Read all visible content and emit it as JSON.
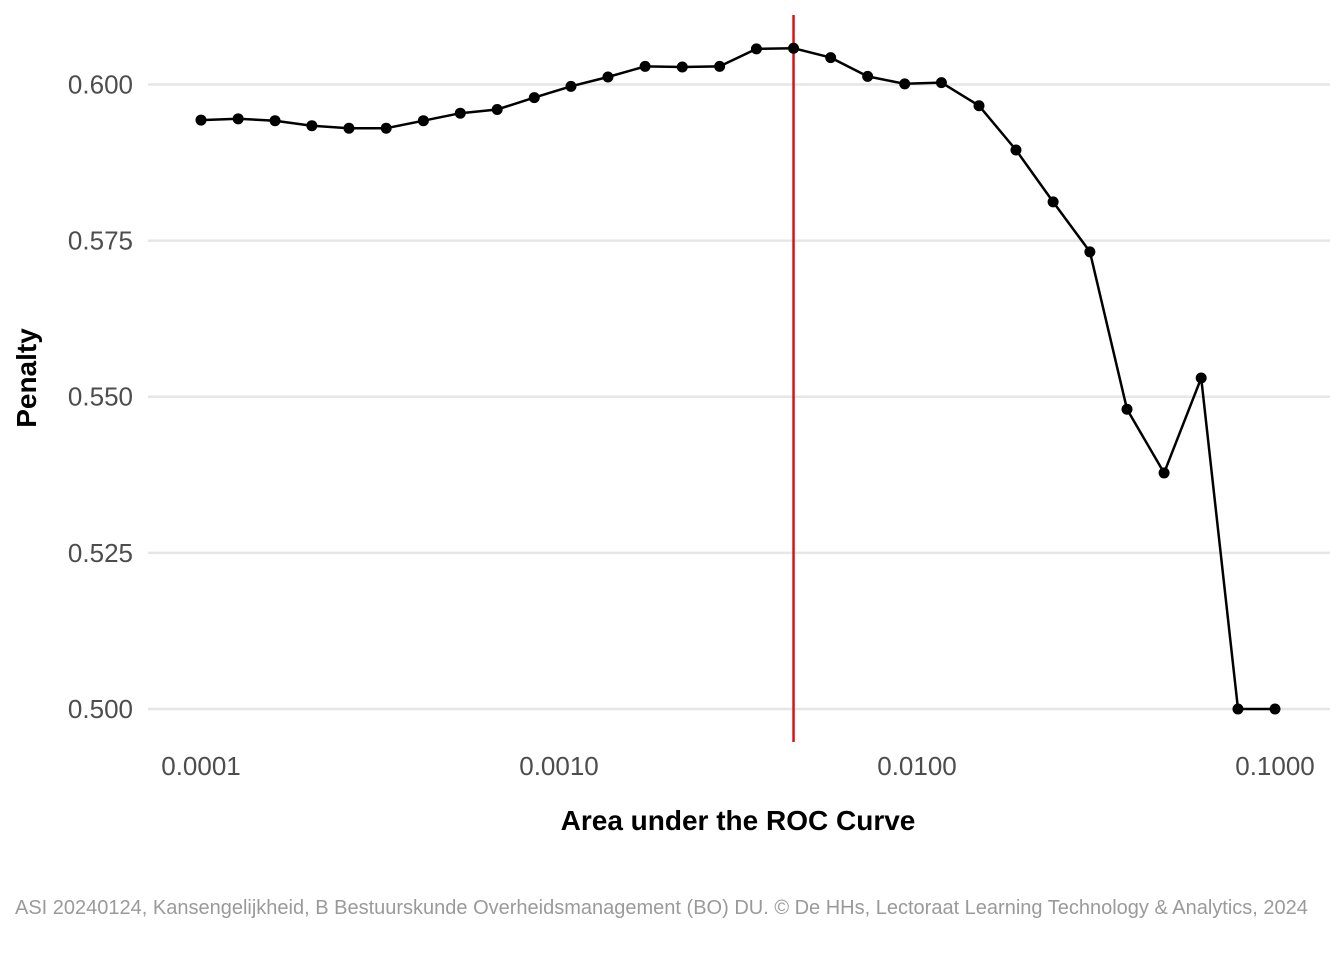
{
  "chart_data": {
    "type": "line",
    "title": "",
    "xlabel": "Area under the ROC Curve",
    "ylabel": "Penalty",
    "x_scale": "log",
    "xlim": [
      0.0001,
      0.1
    ],
    "ylim": [
      0.5,
      0.606
    ],
    "x_ticks": [
      0.0001,
      0.001,
      0.01,
      0.1
    ],
    "x_tick_labels": [
      "0.0001",
      "0.0010",
      "0.0100",
      "0.1000"
    ],
    "y_ticks": [
      0.5,
      0.525,
      0.55,
      0.575,
      0.6
    ],
    "y_tick_labels": [
      "0.500",
      "0.525",
      "0.550",
      "0.575",
      "0.600"
    ],
    "grid": true,
    "series": [
      {
        "color": "#000000",
        "marker": "circle",
        "x": [
          0.0001,
          0.000127,
          0.000161,
          0.000204,
          0.000259,
          0.000329,
          0.000418,
          0.00053,
          0.000672,
          0.000853,
          0.00108,
          0.00137,
          0.00174,
          0.00221,
          0.00281,
          0.00356,
          0.00452,
          0.00574,
          0.00728,
          0.00924,
          0.0117,
          0.0149,
          0.0189,
          0.024,
          0.0304,
          0.0386,
          0.049,
          0.0622,
          0.0788,
          0.1
        ],
        "values": [
          0.5943,
          0.5945,
          0.5942,
          0.5934,
          0.593,
          0.593,
          0.5942,
          0.5954,
          0.596,
          0.5979,
          0.5997,
          0.6012,
          0.6029,
          0.6028,
          0.6029,
          0.6057,
          0.6058,
          0.6043,
          0.6013,
          0.6001,
          0.6003,
          0.5966,
          0.5895,
          0.5812,
          0.5732,
          0.548,
          0.5378,
          0.553,
          0.5,
          0.5
        ]
      }
    ],
    "reference_line": {
      "orientation": "vertical",
      "x": 0.00452,
      "color": "#dd1111"
    }
  },
  "caption": "ASI 20240124, Kansengelijkheid, B Bestuurskunde Overheidsmanagement (BO) DU. © De HHs, Lectoraat Learning Technology & Analytics, 2024"
}
